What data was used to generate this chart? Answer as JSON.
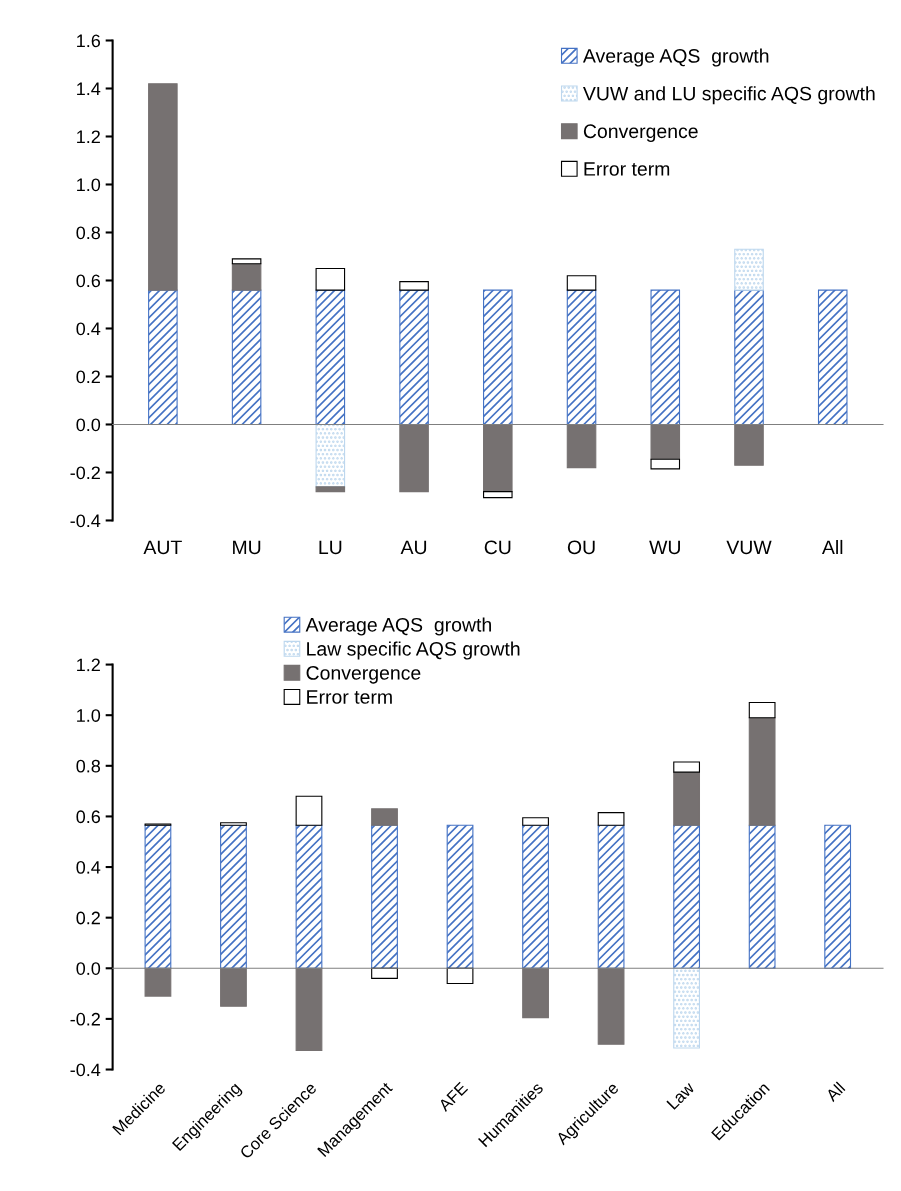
{
  "chart_data": [
    {
      "type": "bar",
      "stacked": true,
      "categories": [
        "AUT",
        "MU",
        "LU",
        "AU",
        "CU",
        "OU",
        "WU",
        "VUW",
        "All"
      ],
      "ylim": [
        -0.4,
        1.6
      ],
      "yticks": [
        {
          "value": -0.4,
          "label": "-0.4"
        },
        {
          "value": -0.2,
          "label": "-0.2"
        },
        {
          "value": 0,
          "label": "0.0"
        },
        {
          "value": 0.2,
          "label": "0.2"
        },
        {
          "value": 0.4,
          "label": "0.4"
        },
        {
          "value": 0.6,
          "label": "0.6"
        },
        {
          "value": 0.8,
          "label": "0.8"
        },
        {
          "value": 1.0,
          "label": "1.0"
        },
        {
          "value": 1.2,
          "label": "1.2"
        },
        {
          "value": 1.4,
          "label": "1.4"
        },
        {
          "value": 1.6,
          "label": "1.6"
        }
      ],
      "legend": "top right",
      "series": [
        {
          "name": "Average AQS  growth",
          "color": "#4472c4",
          "values": [
            0.56,
            0.56,
            0.56,
            0.56,
            0.56,
            0.56,
            0.56,
            0.56,
            0.56
          ]
        },
        {
          "name": "VUW and LU specific AQS growth",
          "color": "#bdd7ee",
          "values": [
            null,
            null,
            -0.26,
            null,
            null,
            null,
            null,
            0.17,
            null
          ]
        },
        {
          "name": "Convergence",
          "color": "#767171",
          "values": [
            0.86,
            0.11,
            -0.02,
            -0.28,
            -0.28,
            -0.18,
            -0.145,
            -0.17,
            null
          ]
        },
        {
          "name": "Error term",
          "color": "#ffffff",
          "values": [
            null,
            0.02,
            0.09,
            0.035,
            -0.025,
            0.06,
            -0.04,
            null,
            null
          ]
        }
      ]
    },
    {
      "type": "bar",
      "stacked": true,
      "categories": [
        "Medicine",
        "Engineering",
        "Core Science",
        "Management",
        "AFE",
        "Humanities",
        "Agriculture",
        "Law",
        "Education",
        "All"
      ],
      "ylim": [
        -0.4,
        1.2
      ],
      "yticks": [
        {
          "value": -0.4,
          "label": "-0.4"
        },
        {
          "value": -0.2,
          "label": "-0.2"
        },
        {
          "value": 0,
          "label": "0.0"
        },
        {
          "value": 0.2,
          "label": "0.2"
        },
        {
          "value": 0.4,
          "label": "0.4"
        },
        {
          "value": 0.6,
          "label": "0.6"
        },
        {
          "value": 0.8,
          "label": "0.8"
        },
        {
          "value": 1.0,
          "label": "1.0"
        },
        {
          "value": 1.2,
          "label": "1.2"
        }
      ],
      "legend": "top",
      "series": [
        {
          "name": "Average AQS  growth",
          "color": "#4472c4",
          "values": [
            0.565,
            0.565,
            0.565,
            0.565,
            0.565,
            0.565,
            0.565,
            0.565,
            0.565,
            0.565
          ]
        },
        {
          "name": "Law specific AQS growth",
          "color": "#bdd7ee",
          "values": [
            null,
            null,
            null,
            null,
            null,
            null,
            null,
            -0.315,
            null,
            null
          ]
        },
        {
          "name": "Convergence",
          "color": "#767171",
          "values": [
            -0.11,
            -0.15,
            -0.325,
            0.065,
            null,
            -0.195,
            -0.3,
            0.21,
            0.425,
            null
          ]
        },
        {
          "name": "Error term",
          "color": "#ffffff",
          "values": [
            0.005,
            0.01,
            0.115,
            -0.04,
            -0.06,
            0.03,
            0.05,
            0.04,
            0.06,
            null
          ]
        }
      ]
    }
  ]
}
